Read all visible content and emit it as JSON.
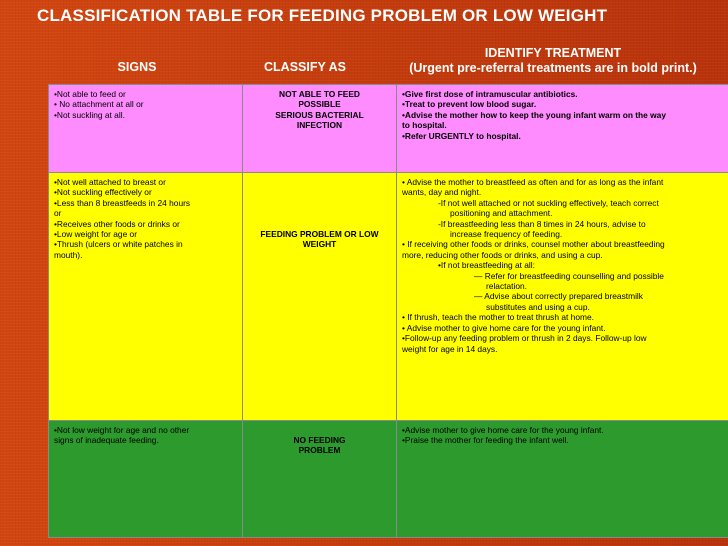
{
  "title": "CLASSIFICATION TABLE FOR FEEDING PROBLEM OR LOW WEIGHT",
  "headers": {
    "signs": "SIGNS",
    "classify": "CLASSIFY AS",
    "treat_line1": "IDENTIFY TREATMENT",
    "treat_line2": "(Urgent pre-referral treatments are in bold print.)"
  },
  "rows": [
    {
      "color": "#ff8cff",
      "signs": [
        "•Not able to feed or",
        "• No attachment at all or",
        "•Not suckling at all."
      ],
      "classify": [
        "NOT ABLE TO FEED",
        "POSSIBLE",
        "SERIOUS BACTERIAL",
        "INFECTION"
      ],
      "treat": [
        "•Give first dose of intramuscular antibiotics.",
        "•Treat to prevent low blood sugar.",
        "•Advise the mother how to keep the young infant warm on the way",
        "to hospital.",
        "•Refer URGENTLY to hospital."
      ]
    },
    {
      "color": "#ffff00",
      "signs": [
        "•Not well attached to breast or",
        "•Not suckling effectively or",
        "•Less than 8 breastfeeds in 24 hours",
        "or",
        "•Receives other foods or drinks or",
        "•Low weight for age or",
        "•Thrush (ulcers or white patches in",
        "mouth)."
      ],
      "classify": [
        "FEEDING PROBLEM OR LOW",
        "WEIGHT"
      ],
      "treat": [
        "• Advise the mother to breastfeed as often and for as long as the infant",
        "wants, day and night.",
        "-If not well attached or not suckling effectively, teach correct",
        "positioning and attachment.",
        "-If breastfeeding less than 8 times in 24 hours, advise to",
        "increase frequency of feeding.",
        "• If receiving other foods or drinks, counsel mother about breastfeeding",
        "more, reducing other foods or drinks, and using a cup.",
        "•If not breastfeeding at all:",
        "— Refer for breastfeeding counselling and possible",
        "relactation.",
        "— Advise about correctly prepared breastmilk",
        "substitutes and using a cup.",
        "• If thrush, teach the mother to treat thrush at home.",
        "• Advise mother to give home care for the young infant.",
        "•Follow-up any feeding problem or thrush in 2 days. Follow-up low",
        "weight for age in 14 days."
      ]
    },
    {
      "color": "#2c9a2c",
      "signs": [
        "•Not low weight for age and no other",
        "signs of inadequate feeding."
      ],
      "classify": [
        "NO FEEDING",
        "PROBLEM"
      ],
      "treat": [
        "•Advise mother to give home care for the young infant.",
        "•Praise the mother for feeding the infant well."
      ]
    }
  ]
}
